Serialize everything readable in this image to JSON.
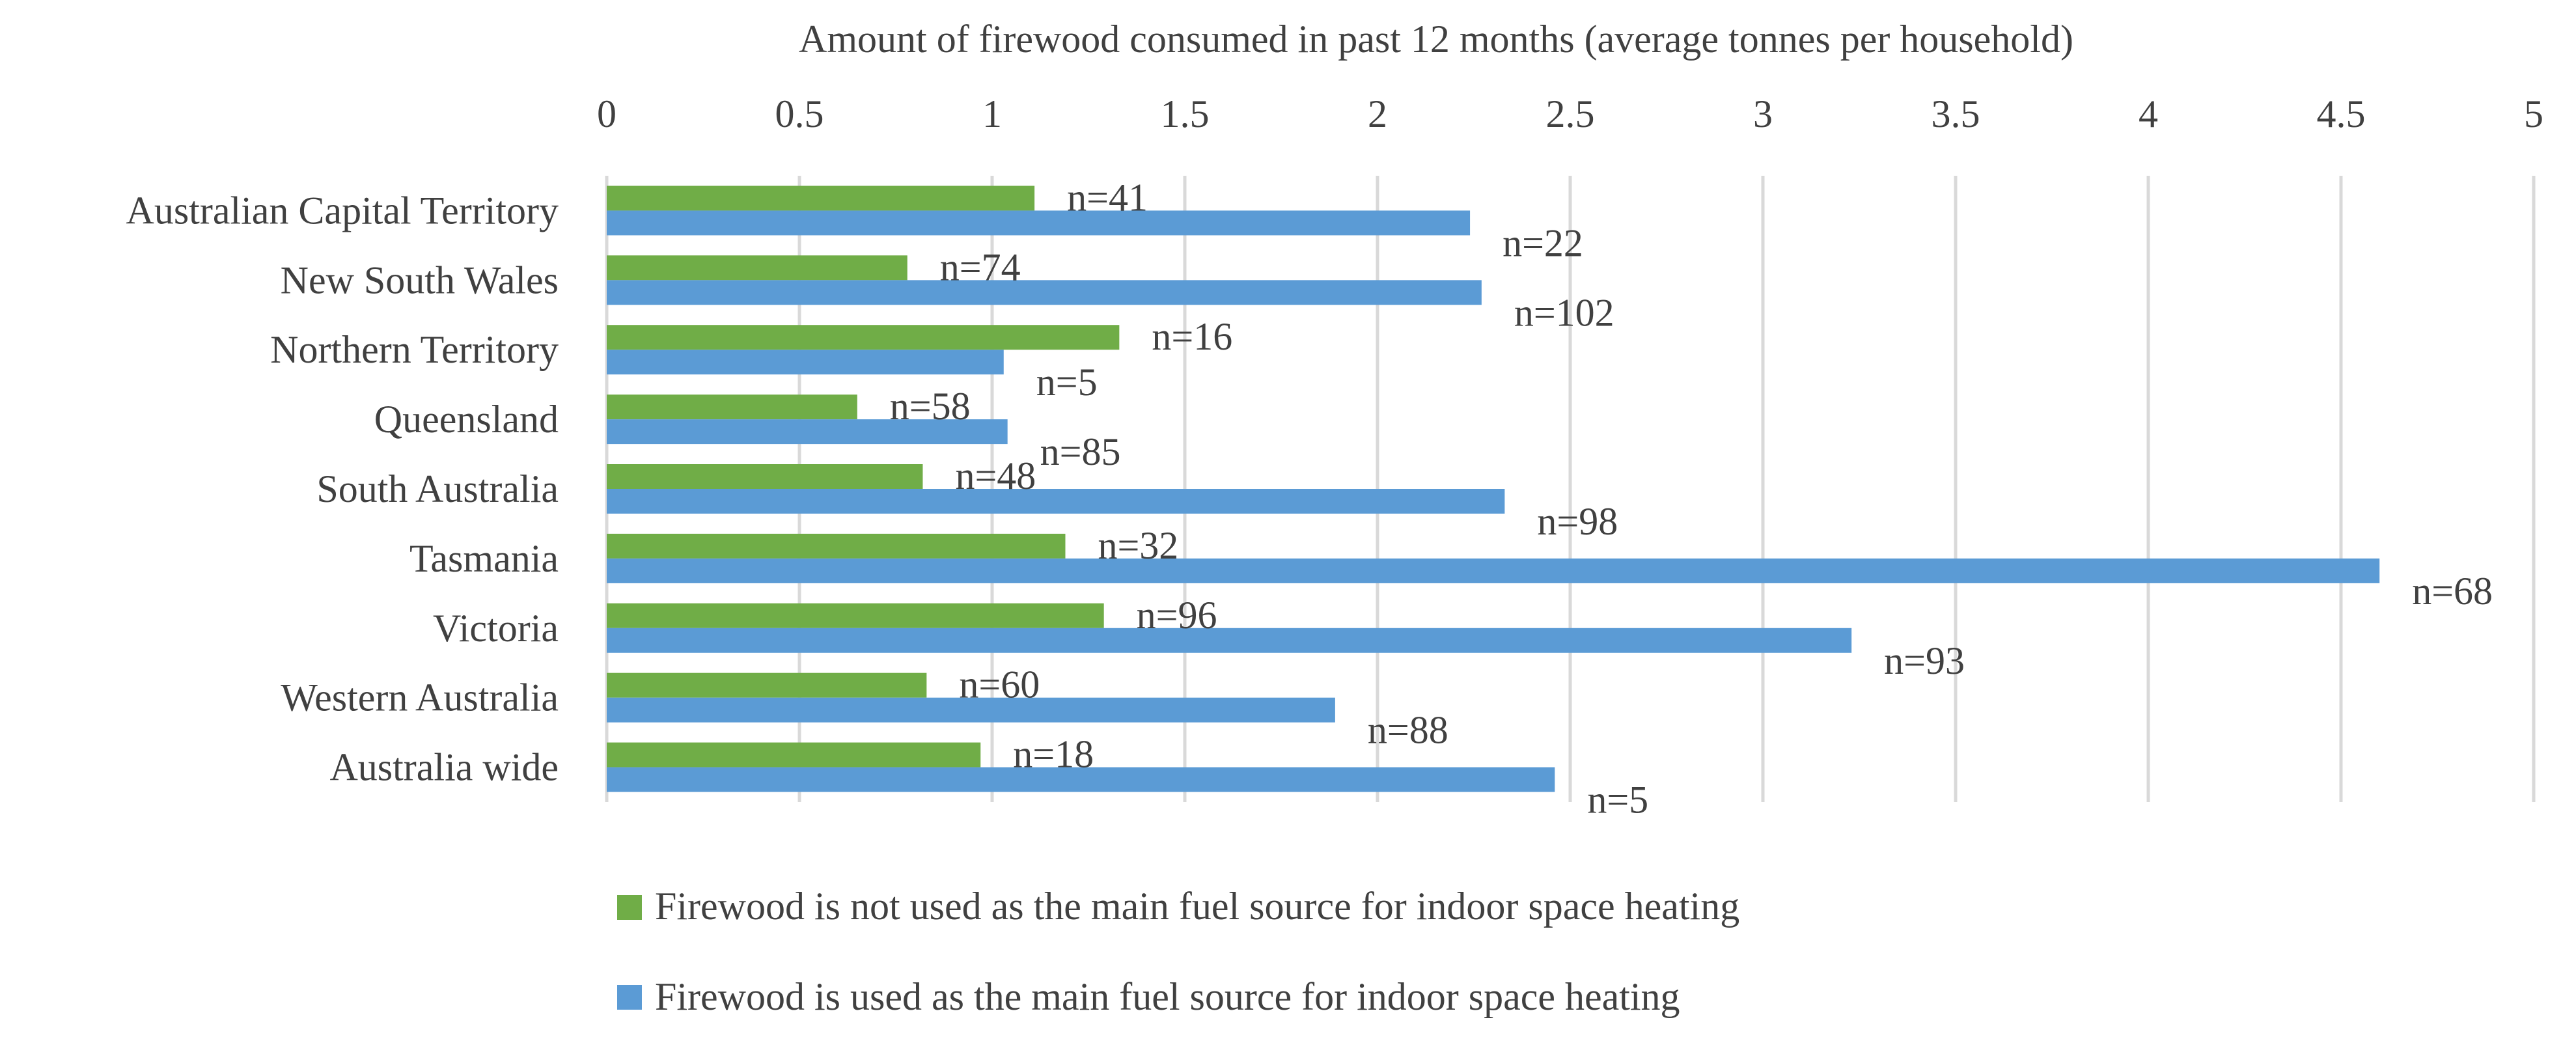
{
  "chart_data": {
    "type": "bar",
    "orientation": "horizontal",
    "title": "",
    "xlabel": "Amount of firewood consumed in past 12 months (average tonnes per household)",
    "ylabel": "",
    "xlim": [
      0,
      5
    ],
    "xticks": [
      0,
      0.5,
      1,
      1.5,
      2,
      2.5,
      3,
      3.5,
      4,
      4.5,
      5
    ],
    "xtick_labels": [
      "0",
      "0.5",
      "1",
      "1.5",
      "2",
      "2.5",
      "3",
      "3.5",
      "4",
      "4.5",
      "5"
    ],
    "x_axis_position": "top",
    "grid": true,
    "legend_position": "bottom-center",
    "categories": [
      "Australian Capital Territory",
      "New South Wales",
      "Northern Territory",
      "Queensland",
      "South Australia",
      "Tasmania",
      "Victoria",
      "Western Australia",
      "Australia wide"
    ],
    "series": [
      {
        "name": "Firewood is not used as the main fuel source for indoor space heating",
        "color": "#70AD47",
        "values": [
          1.11,
          0.78,
          1.33,
          0.65,
          0.82,
          1.19,
          1.29,
          0.83,
          0.97
        ],
        "labels": [
          "n=41",
          "n=74",
          "n=16",
          "n=58",
          "n=48",
          "n=32",
          "n=96",
          "n=60",
          "n=18"
        ]
      },
      {
        "name": "Firewood is used as the main fuel source for indoor space heating",
        "color": "#5B9BD5",
        "values": [
          2.24,
          2.27,
          1.03,
          1.04,
          2.33,
          4.6,
          3.23,
          1.89,
          2.46
        ],
        "labels": [
          "n=22",
          "n=102",
          "n=5",
          "n=85",
          "n=98",
          "n=68",
          "n=93",
          "n=88",
          "n=5"
        ]
      }
    ]
  },
  "colors": {
    "grid": "#D9D9D9",
    "text": "#404040",
    "background": "#FFFFFF"
  }
}
